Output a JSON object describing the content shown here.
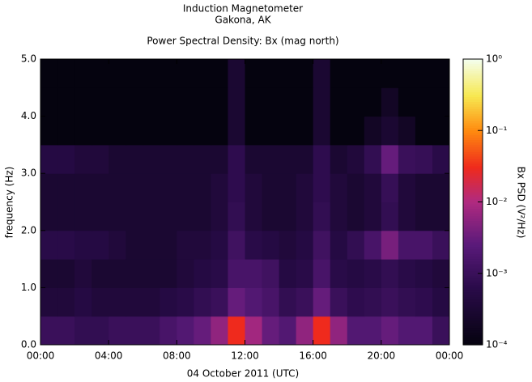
{
  "chart_data": {
    "type": "heatmap",
    "title": "Induction Magnetometer",
    "subtitle": "Gakona, AK",
    "plot_title": "Power Spectral Density: Bx (mag north)",
    "xlabel": "04 October 2011 (UTC)",
    "ylabel": "frequency (Hz)",
    "colorbar_label": "Bx PSD (V²/Hz)",
    "xlim": [
      0,
      24
    ],
    "ylim": [
      0,
      5
    ],
    "clim": [
      0.0001,
      1
    ],
    "log_color": true,
    "xticks": [
      {
        "value": 0,
        "label": "00:00"
      },
      {
        "value": 4,
        "label": "04:00"
      },
      {
        "value": 8,
        "label": "08:00"
      },
      {
        "value": 12,
        "label": "12:00"
      },
      {
        "value": 16,
        "label": "16:00"
      },
      {
        "value": 20,
        "label": "20:00"
      },
      {
        "value": 24,
        "label": "00:00"
      }
    ],
    "yticks": [
      {
        "value": 0,
        "label": "0.0"
      },
      {
        "value": 1,
        "label": "1.0"
      },
      {
        "value": 2,
        "label": "2.0"
      },
      {
        "value": 3,
        "label": "3.0"
      },
      {
        "value": 4,
        "label": "4.0"
      },
      {
        "value": 5,
        "label": "5.0"
      }
    ],
    "cticks": [
      {
        "value": 0.0001,
        "label": "10⁻⁴"
      },
      {
        "value": 0.001,
        "label": "10⁻³"
      },
      {
        "value": 0.01,
        "label": "10⁻²"
      },
      {
        "value": 0.1,
        "label": "10⁻¹"
      },
      {
        "value": 1,
        "label": "10⁰"
      }
    ],
    "colormap": [
      [
        0,
        "#05030f"
      ],
      [
        0.2,
        "#2a0b4a"
      ],
      [
        0.35,
        "#5a1a7a"
      ],
      [
        0.5,
        "#b02a80"
      ],
      [
        0.62,
        "#ef2a1c"
      ],
      [
        0.75,
        "#ff8c10"
      ],
      [
        0.87,
        "#f7e850"
      ],
      [
        1,
        "#f4fff0"
      ]
    ],
    "xbins": [
      0,
      1,
      2,
      3,
      4,
      5,
      6,
      7,
      8,
      9,
      10,
      11,
      12,
      13,
      14,
      15,
      16,
      17,
      18,
      19,
      20,
      21,
      22,
      23,
      24
    ],
    "ybins": [
      0,
      0.5,
      1,
      1.5,
      2,
      2.5,
      3,
      3.5,
      4,
      4.5,
      5
    ],
    "z": [
      [
        0.001,
        0.001,
        0.0008,
        0.0008,
        0.001,
        0.001,
        0.001,
        0.0015,
        0.002,
        0.003,
        0.006,
        0.03,
        0.008,
        0.003,
        0.002,
        0.006,
        0.03,
        0.006,
        0.002,
        0.002,
        0.003,
        0.002,
        0.002,
        0.001
      ],
      [
        0.0004,
        0.0004,
        0.0005,
        0.0004,
        0.0004,
        0.0004,
        0.0004,
        0.0005,
        0.0006,
        0.0008,
        0.001,
        0.003,
        0.002,
        0.0015,
        0.0008,
        0.001,
        0.003,
        0.001,
        0.0007,
        0.0008,
        0.001,
        0.0008,
        0.0007,
        0.0005
      ],
      [
        0.0003,
        0.0003,
        0.0004,
        0.0003,
        0.0003,
        0.0003,
        0.0003,
        0.0003,
        0.0004,
        0.0005,
        0.0006,
        0.0015,
        0.0015,
        0.0012,
        0.0005,
        0.0006,
        0.0015,
        0.0006,
        0.0005,
        0.0006,
        0.0008,
        0.0006,
        0.0005,
        0.0004
      ],
      [
        0.0006,
        0.0006,
        0.0005,
        0.0005,
        0.0004,
        0.0003,
        0.0003,
        0.0003,
        0.0004,
        0.0004,
        0.0005,
        0.0012,
        0.0006,
        0.0005,
        0.0004,
        0.0005,
        0.0012,
        0.0005,
        0.0008,
        0.0015,
        0.004,
        0.0015,
        0.0015,
        0.001
      ],
      [
        0.0003,
        0.0003,
        0.0003,
        0.0003,
        0.0003,
        0.0003,
        0.0003,
        0.0003,
        0.0003,
        0.0003,
        0.0004,
        0.0008,
        0.0004,
        0.0003,
        0.0003,
        0.0004,
        0.0008,
        0.0004,
        0.0003,
        0.0004,
        0.0008,
        0.0004,
        0.0003,
        0.0003
      ],
      [
        0.0003,
        0.0003,
        0.0003,
        0.0003,
        0.0003,
        0.0003,
        0.0003,
        0.0003,
        0.0003,
        0.0003,
        0.0004,
        0.0007,
        0.0004,
        0.0003,
        0.0003,
        0.0004,
        0.0007,
        0.0004,
        0.0003,
        0.0004,
        0.0009,
        0.0004,
        0.0003,
        0.0003
      ],
      [
        0.0005,
        0.0005,
        0.0004,
        0.0004,
        0.0003,
        0.0003,
        0.0003,
        0.0003,
        0.0003,
        0.0003,
        0.0003,
        0.0007,
        0.0003,
        0.0003,
        0.0003,
        0.0003,
        0.0007,
        0.0003,
        0.0004,
        0.0008,
        0.003,
        0.001,
        0.0009,
        0.0006
      ],
      [
        0.0001,
        0.0001,
        0.0001,
        0.0001,
        0.0001,
        0.0001,
        0.0001,
        0.0001,
        0.0001,
        0.0001,
        0.0001,
        0.0003,
        0.0001,
        0.0001,
        0.0001,
        0.0001,
        0.0003,
        0.0001,
        0.0001,
        0.0002,
        0.0003,
        0.0002,
        0.0001,
        0.0001
      ],
      [
        0.0001,
        0.0001,
        0.0001,
        0.0001,
        0.0001,
        0.0001,
        0.0001,
        0.0001,
        0.0001,
        0.0001,
        0.0001,
        0.0003,
        0.0001,
        0.0001,
        0.0001,
        0.0001,
        0.0003,
        0.0001,
        0.0001,
        0.0001,
        0.0002,
        0.0001,
        0.0001,
        0.0001
      ],
      [
        0.0001,
        0.0001,
        0.0001,
        0.0001,
        0.0001,
        0.0001,
        0.0001,
        0.0001,
        0.0001,
        0.0001,
        0.0001,
        0.0003,
        0.0001,
        0.0001,
        0.0001,
        0.0001,
        0.0003,
        0.0001,
        0.0001,
        0.0001,
        0.0001,
        0.0001,
        0.0001,
        0.0001
      ]
    ]
  }
}
